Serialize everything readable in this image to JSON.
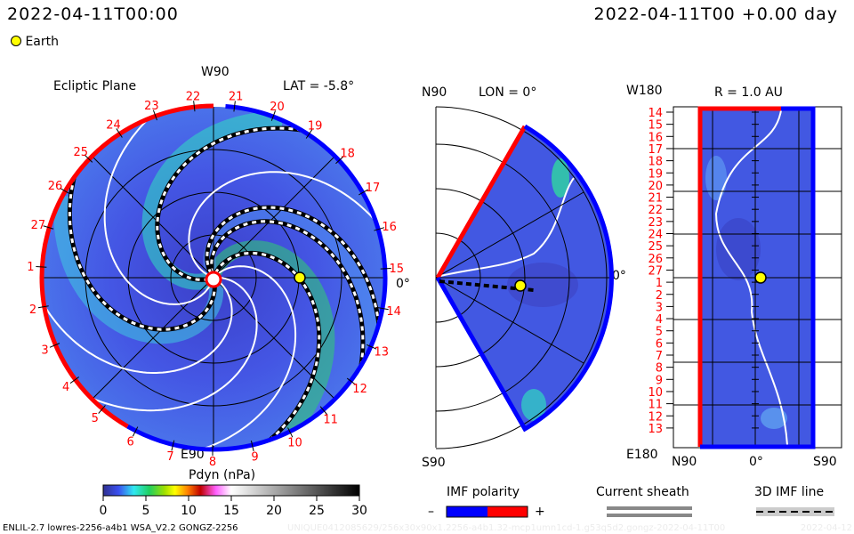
{
  "header": {
    "left_datetime": "2022-04-11T00:00",
    "right_datetime": "2022-04-11T00 +0.00 day",
    "earth_legend": "Earth"
  },
  "ecliptic": {
    "title": "Ecliptic Plane",
    "lat_label": "LAT = -5.8°",
    "top_label": "W90",
    "bottom_label": "E90",
    "zero_label": "0°",
    "day_labels": [
      "21",
      "20",
      "19",
      "18",
      "17",
      "16",
      "15",
      "14",
      "13",
      "12",
      "11",
      "10",
      "9",
      "8",
      "7",
      "6",
      "5",
      "4",
      "3",
      "2",
      "1",
      "27",
      "26",
      "25",
      "24",
      "23",
      "22"
    ]
  },
  "meridional": {
    "n_label": "N90",
    "s_label": "S90",
    "lon_label": "LON = 0°",
    "zero_label": "0°"
  },
  "radial": {
    "title": "R = 1.0 AU",
    "top_label": "W180",
    "bottom_label": "E180",
    "x_labels": [
      "N90",
      "0°",
      "S90"
    ],
    "y_labels": [
      "14",
      "15",
      "16",
      "17",
      "18",
      "19",
      "20",
      "21",
      "22",
      "23",
      "24",
      "25",
      "26",
      "27",
      "1",
      "2",
      "3",
      "4",
      "5",
      "6",
      "7",
      "8",
      "9",
      "10",
      "11",
      "12",
      "13"
    ]
  },
  "legend": {
    "colorbar_title": "Pdyn (nPa)",
    "imf_title": "IMF polarity",
    "imf_minus": "–",
    "imf_plus": "+",
    "sheath_title": "Current sheath",
    "imf_line_title": "3D IMF line"
  },
  "footer": {
    "model_info": "ENLIL-2.7 lowres-2256-a4b1 WSA_V2.2 GONGZ-2256",
    "run_id": "UNIQUE0412085629/256x30x90x1.2256-a4b1.32-mcp1umn1cd-1.g53q5d2.gongz-2022-04-11T00",
    "run_date": "2022-04-12"
  },
  "colors": {
    "positive_polarity": "#ff0000",
    "negative_polarity": "#0000ff",
    "earth": "#ffff00",
    "field": "#4050e0"
  },
  "chart_data": {
    "type": "heatmap",
    "title": "Pdyn (nPa)",
    "colorbar_range": [
      0,
      30
    ],
    "colorbar_ticks": [
      "0",
      "5",
      "10",
      "15",
      "20",
      "25",
      "30"
    ],
    "earth_position": {
      "lon_deg": 0,
      "lat_deg": -5.8,
      "r_au": 1.0
    }
  }
}
